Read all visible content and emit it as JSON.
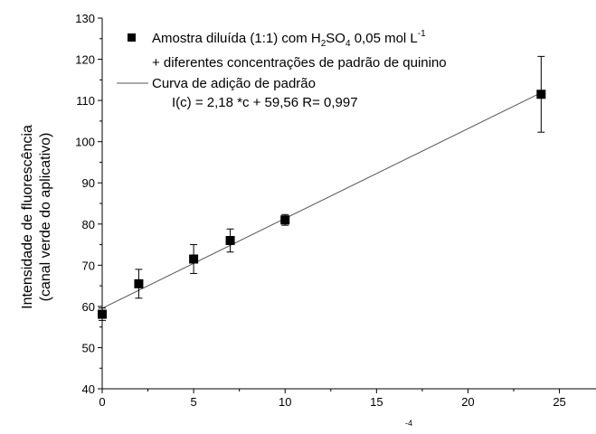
{
  "chart_data": {
    "type": "scatter",
    "title": "",
    "xlabel": "",
    "ylabel_line1": "Intensidade de fluorescência",
    "ylabel_line2": "(canal verde do aplicativo)",
    "xlim": [
      0,
      27
    ],
    "ylim": [
      40,
      130
    ],
    "xticks": [
      0,
      5,
      10,
      15,
      20,
      25
    ],
    "yticks": [
      40,
      50,
      60,
      70,
      80,
      90,
      100,
      110,
      120,
      130
    ],
    "grid": false,
    "legend_position": "top-left",
    "series": [
      {
        "kind": "points",
        "marker": "square",
        "color": "#000000",
        "x": [
          0,
          2,
          5,
          7,
          10,
          24
        ],
        "y": [
          58.1,
          65.5,
          71.5,
          76.0,
          81.0,
          111.5
        ],
        "err": [
          1.5,
          3.5,
          3.5,
          2.8,
          1.3,
          9.2
        ]
      },
      {
        "kind": "line",
        "color": "#555555",
        "slope": 2.18,
        "intercept": 59.56,
        "x_range": [
          0,
          24
        ]
      }
    ],
    "legend": {
      "points_label": {
        "pre": "Amostra diluída (1:1) com H",
        "sub1": "2",
        "mid": "SO",
        "sub2": "4",
        "post": " 0,05 mol L",
        "sup": "-1"
      },
      "points_label_line2": "+ diferentes concentrações de padrão de quinino",
      "line_label": "Curva de adição de padrão",
      "equation": "I(c) = 2,18 *c + 59,56   R= 0,997"
    },
    "x_unit_fragment": "-4"
  }
}
